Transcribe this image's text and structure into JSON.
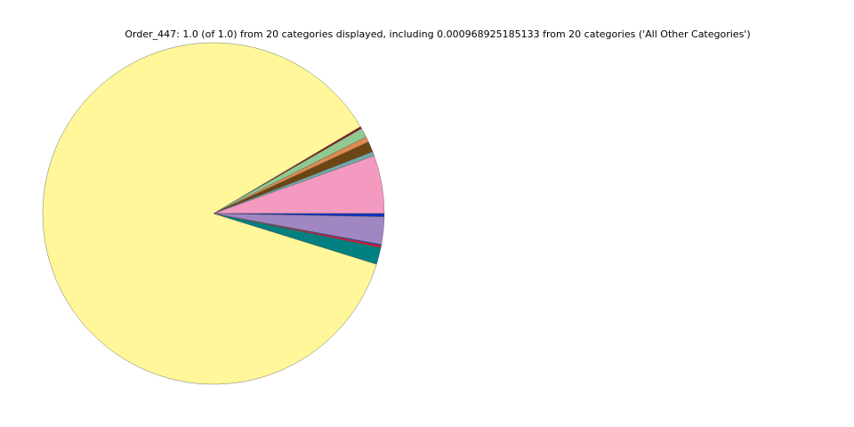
{
  "chart_data": {
    "type": "pie",
    "title": "Order_447: 1.0 (of 1.0) from 20 categories displayed, including 0.000968925185133 from 20 categories ('All Other Categories')",
    "values": [
      0.055,
      0.004,
      0.01,
      0.005,
      0.009,
      0.002,
      0.867,
      0.016,
      0.002,
      0.001,
      0.026,
      0.003
    ],
    "colors": [
      "#f49ac1",
      "#6fa8a8",
      "#6b4513",
      "#e08a50",
      "#8fc98f",
      "#8b1a1a",
      "#fff799",
      "#008080",
      "#e0102a",
      "#1e2fd6",
      "#a087c2",
      "#1030c0"
    ],
    "start_angle": 0,
    "counterclockwise": true
  }
}
